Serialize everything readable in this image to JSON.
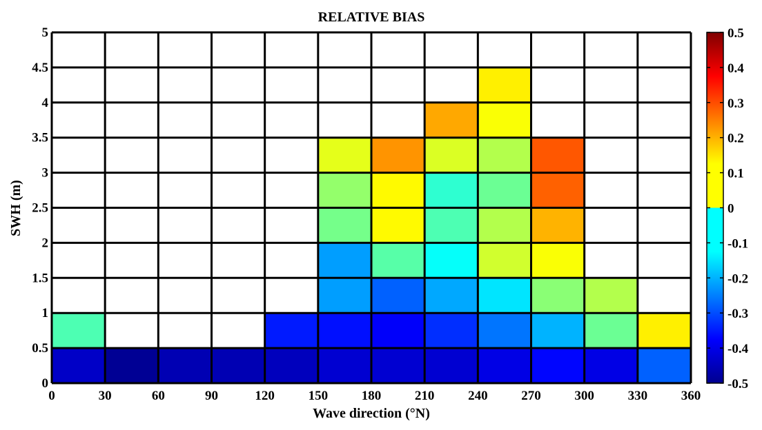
{
  "chart_data": {
    "type": "heatmap",
    "title": "RELATIVE BIAS",
    "xlabel": "Wave direction (°N)",
    "ylabel": "SWH (m)",
    "xlim": [
      0,
      360
    ],
    "ylim": [
      0,
      5
    ],
    "x_ticks": [
      "0",
      "30",
      "60",
      "90",
      "120",
      "150",
      "180",
      "210",
      "240",
      "270",
      "300",
      "330",
      "360"
    ],
    "y_ticks": [
      "0",
      "0.5",
      "1",
      "1.5",
      "2",
      "2.5",
      "3",
      "3.5",
      "4",
      "4.5",
      "5"
    ],
    "x_bin_width": 30,
    "y_bin_width": 0.5,
    "grid": true,
    "colorbar": {
      "min": -0.5,
      "max": 0.5,
      "colormap": "jet",
      "ticks": [
        "0.5",
        "0.4",
        "0.3",
        "0.2",
        "0.1",
        "0",
        "-0.1",
        "-0.2",
        "-0.3",
        "-0.4",
        "-0.5"
      ]
    },
    "cells": [
      {
        "x": 0,
        "y": 0,
        "value": -0.43
      },
      {
        "x": 30,
        "y": 0,
        "value": -0.48
      },
      {
        "x": 60,
        "y": 0,
        "value": -0.45
      },
      {
        "x": 90,
        "y": 0,
        "value": -0.45
      },
      {
        "x": 120,
        "y": 0,
        "value": -0.44
      },
      {
        "x": 150,
        "y": 0,
        "value": -0.42
      },
      {
        "x": 180,
        "y": 0,
        "value": -0.42
      },
      {
        "x": 210,
        "y": 0,
        "value": -0.42
      },
      {
        "x": 240,
        "y": 0,
        "value": -0.4
      },
      {
        "x": 270,
        "y": 0,
        "value": -0.37
      },
      {
        "x": 300,
        "y": 0,
        "value": -0.4
      },
      {
        "x": 330,
        "y": 0,
        "value": -0.28
      },
      {
        "x": 0,
        "y": 0.5,
        "value": -0.05
      },
      {
        "x": 120,
        "y": 0.5,
        "value": -0.35
      },
      {
        "x": 150,
        "y": 0.5,
        "value": -0.36
      },
      {
        "x": 180,
        "y": 0.5,
        "value": -0.38
      },
      {
        "x": 210,
        "y": 0.5,
        "value": -0.33
      },
      {
        "x": 240,
        "y": 0.5,
        "value": -0.26
      },
      {
        "x": 270,
        "y": 0.5,
        "value": -0.2
      },
      {
        "x": 300,
        "y": 0.5,
        "value": -0.02
      },
      {
        "x": 330,
        "y": 0.5,
        "value": 0.14
      },
      {
        "x": 150,
        "y": 1.0,
        "value": -0.22
      },
      {
        "x": 180,
        "y": 1.0,
        "value": -0.28
      },
      {
        "x": 210,
        "y": 1.0,
        "value": -0.21
      },
      {
        "x": 240,
        "y": 1.0,
        "value": -0.15
      },
      {
        "x": 270,
        "y": 1.0,
        "value": 0.01
      },
      {
        "x": 300,
        "y": 1.0,
        "value": 0.05
      },
      {
        "x": 150,
        "y": 1.5,
        "value": -0.22
      },
      {
        "x": 180,
        "y": 1.5,
        "value": -0.04
      },
      {
        "x": 210,
        "y": 1.5,
        "value": -0.12
      },
      {
        "x": 240,
        "y": 1.5,
        "value": 0.08
      },
      {
        "x": 270,
        "y": 1.5,
        "value": 0.12
      },
      {
        "x": 150,
        "y": 2.0,
        "value": -0.01
      },
      {
        "x": 180,
        "y": 2.0,
        "value": 0.13
      },
      {
        "x": 210,
        "y": 2.0,
        "value": -0.05
      },
      {
        "x": 240,
        "y": 2.0,
        "value": 0.05
      },
      {
        "x": 270,
        "y": 2.0,
        "value": 0.2
      },
      {
        "x": 150,
        "y": 2.5,
        "value": 0.02
      },
      {
        "x": 180,
        "y": 2.5,
        "value": 0.13
      },
      {
        "x": 210,
        "y": 2.5,
        "value": -0.08
      },
      {
        "x": 240,
        "y": 2.5,
        "value": -0.02
      },
      {
        "x": 270,
        "y": 2.5,
        "value": 0.28
      },
      {
        "x": 150,
        "y": 3.0,
        "value": 0.1
      },
      {
        "x": 180,
        "y": 3.0,
        "value": 0.23
      },
      {
        "x": 210,
        "y": 3.0,
        "value": 0.09
      },
      {
        "x": 240,
        "y": 3.0,
        "value": 0.05
      },
      {
        "x": 270,
        "y": 3.0,
        "value": 0.29
      },
      {
        "x": 210,
        "y": 3.5,
        "value": 0.21
      },
      {
        "x": 240,
        "y": 3.5,
        "value": 0.12
      },
      {
        "x": 240,
        "y": 4.0,
        "value": 0.14
      }
    ]
  }
}
